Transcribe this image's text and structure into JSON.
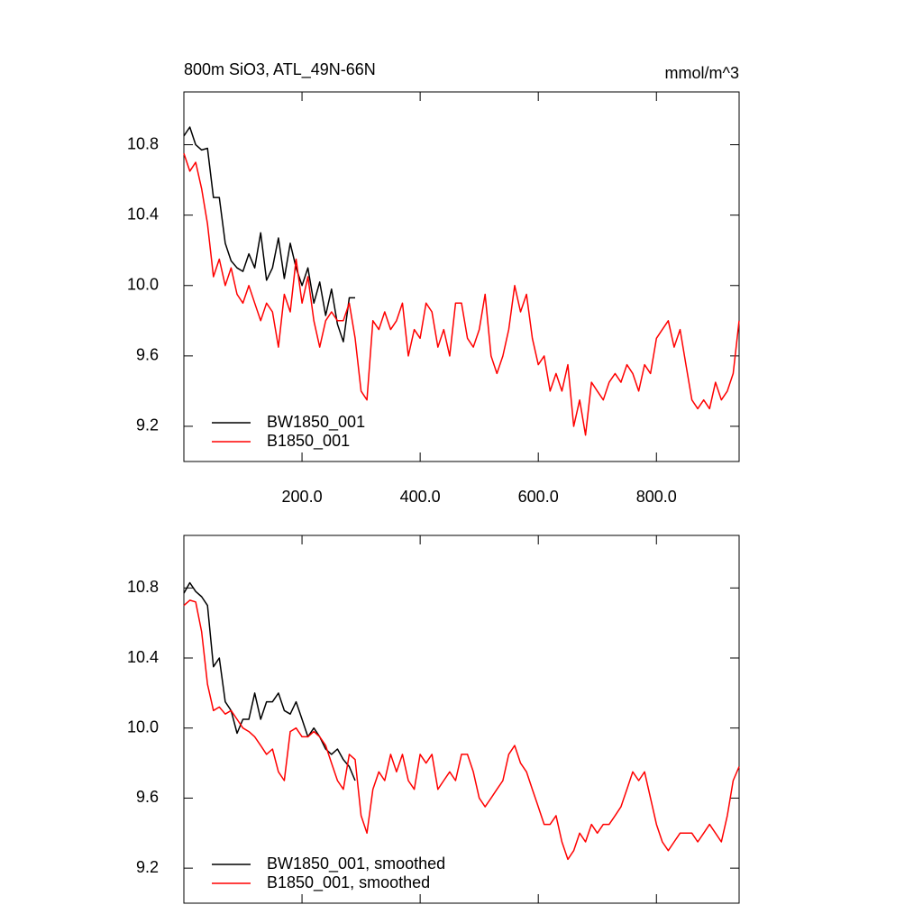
{
  "chart_data": [
    {
      "type": "line",
      "title": "800m SiO3, ATL_49N-66N",
      "units": "mmol/m^3",
      "xlim": [
        0,
        940
      ],
      "xticks": [
        {
          "value": 200,
          "label": "200.0"
        },
        {
          "value": 400,
          "label": "400.0"
        },
        {
          "value": 600,
          "label": "600.0"
        },
        {
          "value": 800,
          "label": "800.0"
        }
      ],
      "xtick_labels": true,
      "ylim": [
        9.0,
        11.1
      ],
      "yticks": [
        {
          "value": 9.2,
          "label": "9.2"
        },
        {
          "value": 9.6,
          "label": "9.6"
        },
        {
          "value": 10.0,
          "label": "10.0"
        },
        {
          "value": 10.4,
          "label": "10.4"
        },
        {
          "value": 10.8,
          "label": "10.8"
        }
      ],
      "legend": "lower left",
      "series": [
        {
          "name": "BW1850_001",
          "color": "#000000",
          "x": [
            0,
            10,
            20,
            30,
            40,
            50,
            60,
            70,
            80,
            90,
            100,
            110,
            120,
            130,
            140,
            150,
            160,
            170,
            180,
            190,
            200,
            210,
            220,
            230,
            240,
            250,
            260,
            270,
            280,
            290
          ],
          "values": [
            10.85,
            10.9,
            10.8,
            10.77,
            10.78,
            10.5,
            10.5,
            10.24,
            10.14,
            10.1,
            10.08,
            10.18,
            10.1,
            10.3,
            10.03,
            10.1,
            10.27,
            10.04,
            10.24,
            10.1,
            10.0,
            10.1,
            9.9,
            10.02,
            9.83,
            9.98,
            9.78,
            9.68,
            9.93,
            9.93
          ]
        },
        {
          "name": "B1850_001",
          "color": "#ff0000",
          "x": [
            0,
            10,
            20,
            30,
            40,
            50,
            60,
            70,
            80,
            90,
            100,
            110,
            120,
            130,
            140,
            150,
            160,
            170,
            180,
            190,
            200,
            210,
            220,
            230,
            240,
            250,
            260,
            270,
            280,
            290,
            300,
            310,
            320,
            330,
            340,
            350,
            360,
            370,
            380,
            390,
            400,
            410,
            420,
            430,
            440,
            450,
            460,
            470,
            480,
            490,
            500,
            510,
            520,
            530,
            540,
            550,
            560,
            570,
            580,
            590,
            600,
            610,
            620,
            630,
            640,
            650,
            660,
            670,
            680,
            690,
            700,
            710,
            720,
            730,
            740,
            750,
            760,
            770,
            780,
            790,
            800,
            810,
            820,
            830,
            840,
            850,
            860,
            870,
            880,
            890,
            900,
            910,
            920,
            930,
            940
          ],
          "values": [
            10.75,
            10.65,
            10.7,
            10.55,
            10.35,
            10.05,
            10.15,
            10.0,
            10.1,
            9.95,
            9.9,
            10.0,
            9.9,
            9.8,
            9.9,
            9.85,
            9.65,
            9.95,
            9.85,
            10.15,
            9.9,
            10.05,
            9.8,
            9.65,
            9.8,
            9.85,
            9.8,
            9.8,
            9.9,
            9.7,
            9.4,
            9.35,
            9.8,
            9.75,
            9.85,
            9.75,
            9.8,
            9.9,
            9.6,
            9.75,
            9.7,
            9.9,
            9.85,
            9.65,
            9.75,
            9.6,
            9.9,
            9.9,
            9.7,
            9.65,
            9.75,
            9.95,
            9.6,
            9.5,
            9.6,
            9.75,
            10.0,
            9.85,
            9.95,
            9.7,
            9.55,
            9.6,
            9.4,
            9.5,
            9.4,
            9.55,
            9.2,
            9.35,
            9.15,
            9.45,
            9.4,
            9.35,
            9.45,
            9.5,
            9.45,
            9.55,
            9.5,
            9.4,
            9.55,
            9.5,
            9.7,
            9.75,
            9.8,
            9.65,
            9.75,
            9.55,
            9.35,
            9.3,
            9.35,
            9.3,
            9.45,
            9.35,
            9.4,
            9.5,
            9.8
          ]
        }
      ]
    },
    {
      "type": "line",
      "xlim": [
        0,
        940
      ],
      "xticks": [
        200,
        400,
        600,
        800
      ],
      "xtick_labels": false,
      "ylim": [
        9.0,
        11.1
      ],
      "yticks": [
        {
          "value": 9.2,
          "label": "9.2"
        },
        {
          "value": 9.6,
          "label": "9.6"
        },
        {
          "value": 10.0,
          "label": "10.0"
        },
        {
          "value": 10.4,
          "label": "10.4"
        },
        {
          "value": 10.8,
          "label": "10.8"
        }
      ],
      "legend": "lower left",
      "series": [
        {
          "name": "BW1850_001, smoothed",
          "color": "#000000",
          "x": [
            0,
            10,
            20,
            30,
            40,
            50,
            60,
            70,
            80,
            90,
            100,
            110,
            120,
            130,
            140,
            150,
            160,
            170,
            180,
            190,
            200,
            210,
            220,
            230,
            240,
            250,
            260,
            270,
            280,
            290
          ],
          "values": [
            10.77,
            10.83,
            10.78,
            10.75,
            10.7,
            10.35,
            10.4,
            10.15,
            10.1,
            9.97,
            10.05,
            10.05,
            10.2,
            10.05,
            10.15,
            10.15,
            10.2,
            10.1,
            10.08,
            10.15,
            10.05,
            9.95,
            10.0,
            9.95,
            9.88,
            9.85,
            9.88,
            9.82,
            9.78,
            9.7
          ]
        },
        {
          "name": "B1850_001, smoothed",
          "color": "#ff0000",
          "x": [
            0,
            10,
            20,
            30,
            40,
            50,
            60,
            70,
            80,
            90,
            100,
            110,
            120,
            130,
            140,
            150,
            160,
            170,
            180,
            190,
            200,
            210,
            220,
            230,
            240,
            250,
            260,
            270,
            280,
            290,
            300,
            310,
            320,
            330,
            340,
            350,
            360,
            370,
            380,
            390,
            400,
            410,
            420,
            430,
            440,
            450,
            460,
            470,
            480,
            490,
            500,
            510,
            520,
            530,
            540,
            550,
            560,
            570,
            580,
            590,
            600,
            610,
            620,
            630,
            640,
            650,
            660,
            670,
            680,
            690,
            700,
            710,
            720,
            730,
            740,
            750,
            760,
            770,
            780,
            790,
            800,
            810,
            820,
            830,
            840,
            850,
            860,
            870,
            880,
            890,
            900,
            910,
            920,
            930,
            940
          ],
          "values": [
            10.7,
            10.73,
            10.72,
            10.55,
            10.25,
            10.1,
            10.12,
            10.08,
            10.1,
            10.05,
            10.0,
            9.98,
            9.95,
            9.9,
            9.85,
            9.88,
            9.75,
            9.7,
            9.98,
            10.0,
            9.95,
            9.95,
            9.98,
            9.95,
            9.9,
            9.8,
            9.7,
            9.65,
            9.85,
            9.82,
            9.5,
            9.4,
            9.65,
            9.75,
            9.7,
            9.85,
            9.75,
            9.85,
            9.7,
            9.65,
            9.85,
            9.8,
            9.85,
            9.65,
            9.7,
            9.75,
            9.7,
            9.85,
            9.85,
            9.75,
            9.6,
            9.55,
            9.6,
            9.65,
            9.7,
            9.85,
            9.9,
            9.8,
            9.75,
            9.65,
            9.55,
            9.45,
            9.45,
            9.5,
            9.35,
            9.25,
            9.3,
            9.4,
            9.35,
            9.45,
            9.4,
            9.45,
            9.45,
            9.5,
            9.55,
            9.65,
            9.75,
            9.7,
            9.75,
            9.6,
            9.45,
            9.35,
            9.3,
            9.35,
            9.4,
            9.4,
            9.4,
            9.35,
            9.4,
            9.45,
            9.4,
            9.35,
            9.5,
            9.7,
            9.78
          ]
        }
      ]
    }
  ]
}
